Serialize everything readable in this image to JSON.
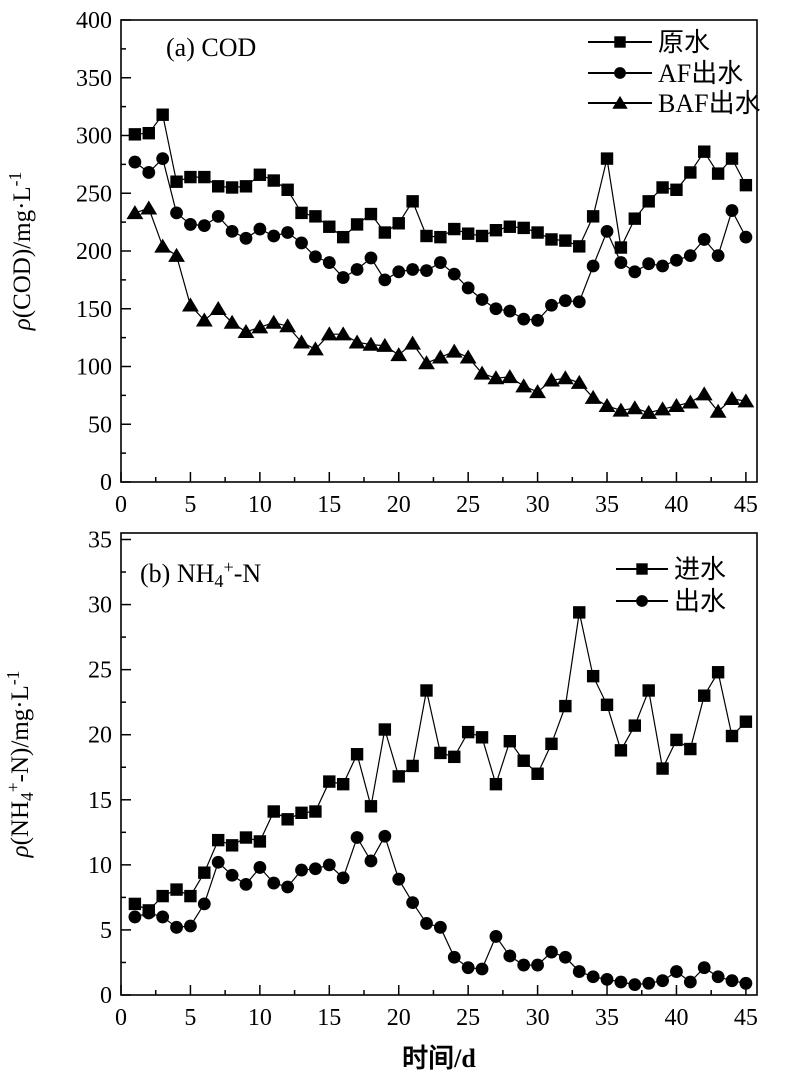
{
  "figure": {
    "background": "#ffffff",
    "foreground": "#000000"
  },
  "xlabel_parts": [
    {
      "t": "时间/d"
    }
  ],
  "chart_data": [
    {
      "id": "cod",
      "type": "line",
      "title_parts": [
        {
          "t": "(a)  COD"
        }
      ],
      "ylabel_parts": [
        {
          "t": "ρ",
          "i": 1
        },
        {
          "t": "(COD)/mg·L"
        },
        {
          "t": "-1",
          "sup": 1
        }
      ],
      "xlim": [
        0,
        45.8
      ],
      "ylim": [
        0,
        400
      ],
      "xticks": [
        0,
        5,
        10,
        15,
        20,
        25,
        30,
        35,
        40,
        45
      ],
      "yticks": [
        0,
        50,
        100,
        150,
        200,
        250,
        300,
        350,
        400
      ],
      "x_minor": 2.5,
      "y_minor": 25,
      "x": [
        1,
        2,
        3,
        4,
        5,
        6,
        7,
        8,
        9,
        10,
        11,
        12,
        13,
        14,
        15,
        16,
        17,
        18,
        19,
        20,
        21,
        22,
        23,
        24,
        25,
        26,
        27,
        28,
        29,
        30,
        31,
        32,
        33,
        34,
        35,
        36,
        37,
        38,
        39,
        40,
        41,
        42,
        43,
        44,
        45
      ],
      "series": [
        {
          "key": "raw-water",
          "name": "原水",
          "marker": "square",
          "values": [
            301,
            302,
            318,
            260,
            264,
            264,
            256,
            255,
            256,
            266,
            261,
            253,
            233,
            230,
            221,
            212,
            223,
            232,
            216,
            224,
            243,
            213,
            212,
            219,
            215,
            213,
            218,
            221,
            220,
            216,
            210,
            209,
            204,
            230,
            280,
            203,
            228,
            243,
            255,
            253,
            268,
            286,
            267,
            280,
            257
          ]
        },
        {
          "key": "af-effluent",
          "name": "AF出水",
          "marker": "circle",
          "values": [
            277,
            268,
            280,
            233,
            223,
            222,
            230,
            217,
            211,
            219,
            213,
            216,
            207,
            195,
            190,
            177,
            184,
            194,
            175,
            182,
            184,
            183,
            190,
            180,
            168,
            158,
            150,
            148,
            141,
            140,
            153,
            157,
            156,
            187,
            217,
            190,
            182,
            189,
            187,
            192,
            196,
            210,
            196,
            235,
            212
          ]
        },
        {
          "key": "baf-effluent",
          "name": "BAF出水",
          "marker": "triangle",
          "values": [
            233,
            237,
            204,
            196,
            153,
            140,
            150,
            138,
            130,
            134,
            138,
            135,
            121,
            115,
            128,
            128,
            121,
            119,
            118,
            110,
            120,
            103,
            108,
            113,
            108,
            94,
            90,
            91,
            83,
            78,
            88,
            90,
            86,
            73,
            66,
            62,
            64,
            60,
            63,
            66,
            69,
            76,
            61,
            72,
            70
          ]
        }
      ],
      "legend_position": "top-right"
    },
    {
      "id": "nh4n",
      "type": "line",
      "title_parts": [
        {
          "t": "(b) NH"
        },
        {
          "t": "4",
          "sub": 1
        },
        {
          "t": "+",
          "sup": 1
        },
        {
          "t": "-N"
        }
      ],
      "ylabel_parts": [
        {
          "t": "ρ",
          "i": 1
        },
        {
          "t": "(NH"
        },
        {
          "t": "4",
          "sub": 1
        },
        {
          "t": "+",
          "sup": 1
        },
        {
          "t": "-N)/mg·L"
        },
        {
          "t": "-1",
          "sup": 1
        }
      ],
      "xlim": [
        0,
        45.8
      ],
      "ylim": [
        0,
        35.5
      ],
      "xticks": [
        0,
        5,
        10,
        15,
        20,
        25,
        30,
        35,
        40,
        45
      ],
      "yticks": [
        0,
        5,
        10,
        15,
        20,
        25,
        30,
        35
      ],
      "x_minor": 2.5,
      "y_minor": 2.5,
      "x": [
        1,
        2,
        3,
        4,
        5,
        6,
        7,
        8,
        9,
        10,
        11,
        12,
        13,
        14,
        15,
        16,
        17,
        18,
        19,
        20,
        21,
        22,
        23,
        24,
        25,
        26,
        27,
        28,
        29,
        30,
        31,
        32,
        33,
        34,
        35,
        36,
        37,
        38,
        39,
        40,
        41,
        42,
        43,
        44,
        45
      ],
      "series": [
        {
          "key": "influent",
          "name": "进水",
          "marker": "square",
          "values": [
            7.0,
            6.5,
            7.6,
            8.1,
            7.6,
            9.4,
            11.9,
            11.5,
            12.1,
            11.8,
            14.1,
            13.5,
            14.0,
            14.1,
            16.4,
            16.2,
            18.5,
            14.5,
            20.4,
            16.8,
            17.6,
            23.4,
            18.6,
            18.3,
            20.2,
            19.8,
            16.2,
            19.5,
            18.0,
            17.0,
            19.3,
            22.2,
            29.4,
            24.5,
            22.3,
            18.8,
            20.7,
            23.4,
            17.4,
            19.6,
            18.9,
            23.0,
            24.8,
            19.9,
            21.0
          ]
        },
        {
          "key": "effluent",
          "name": "出水",
          "marker": "circle",
          "values": [
            6.0,
            6.3,
            6.0,
            5.2,
            5.3,
            7.0,
            10.2,
            9.2,
            8.5,
            9.8,
            8.6,
            8.3,
            9.6,
            9.7,
            10.0,
            9.0,
            12.1,
            10.3,
            12.2,
            8.9,
            7.1,
            5.5,
            5.2,
            2.9,
            2.1,
            2.0,
            4.5,
            3.0,
            2.3,
            2.3,
            3.3,
            2.9,
            1.8,
            1.4,
            1.2,
            1.0,
            0.8,
            0.9,
            1.1,
            1.8,
            1.0,
            2.1,
            1.4,
            1.1,
            0.9
          ]
        }
      ],
      "legend_position": "top-right"
    }
  ]
}
